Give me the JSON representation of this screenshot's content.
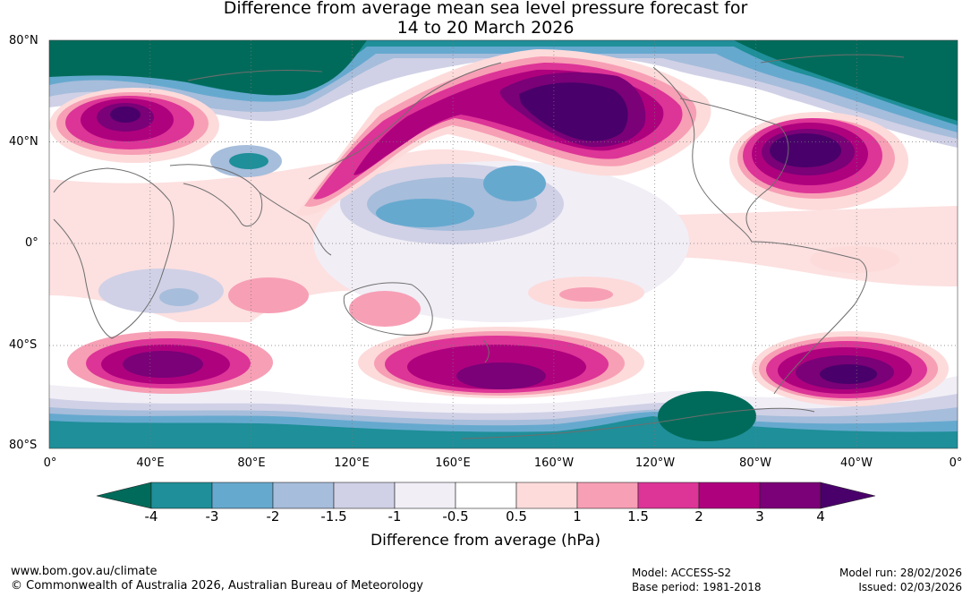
{
  "title_line1": "Difference from average mean sea level pressure forecast for",
  "title_line2": "14 to 20 March 2026",
  "lat_labels": [
    "80°N",
    "40°N",
    "0°",
    "40°S",
    "80°S"
  ],
  "lon_labels": [
    "0°",
    "40°E",
    "80°E",
    "120°E",
    "160°E",
    "160°W",
    "120°W",
    "80°W",
    "40°W",
    "0°"
  ],
  "colorbar": {
    "ticks": [
      "-4",
      "-3",
      "-2",
      "-1.5",
      "-1",
      "-0.5",
      "0.5",
      "1",
      "1.5",
      "2",
      "3",
      "4"
    ],
    "colors": {
      "below_min": "#006b5a",
      "c1": "#1f8f99",
      "c2": "#66a9cf",
      "c3": "#a6bddb",
      "c4": "#d0d1e6",
      "c5": "#f1eef6",
      "c6": "#ffffff",
      "c7": "#fddbdb",
      "c8": "#f79fb5",
      "c9": "#dd3497",
      "c10": "#ae017e",
      "c11": "#7a0177",
      "above_max": "#49006a"
    },
    "label": "Difference from average (hPa)"
  },
  "footer": {
    "website": "www.bom.gov.au/climate",
    "copyright": "© Commonwealth of Australia 2026, Australian Bureau of Meteorology",
    "model": "Model: ACCESS-S2",
    "base_period": "Base period: 1981-2018",
    "model_run": "Model run: 28/02/2026",
    "issued": "Issued: 02/03/2026"
  }
}
